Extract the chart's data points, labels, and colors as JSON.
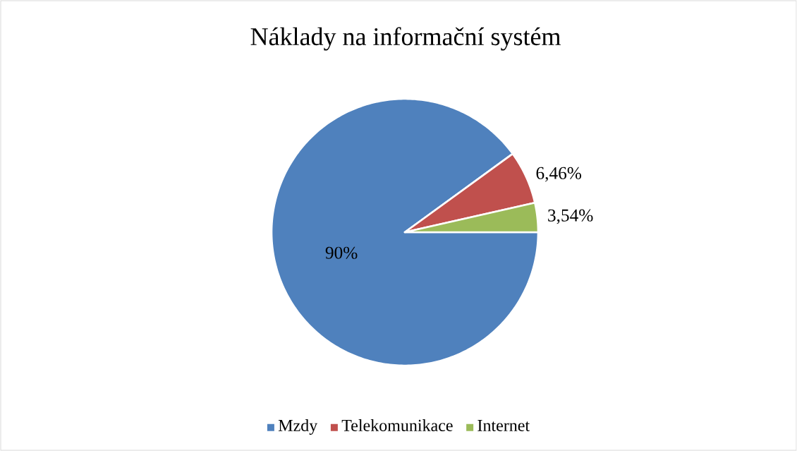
{
  "chart_data": {
    "type": "pie",
    "title": "Náklady na informační systém",
    "categories": [
      "Mzdy",
      "Telekomunikace",
      "Internet"
    ],
    "values": [
      90,
      6.46,
      3.54
    ],
    "colors": [
      "#4f81bd",
      "#c0504d",
      "#9bbb59"
    ],
    "value_labels": [
      "90%",
      "6,46%",
      "3,54%"
    ],
    "legend": "bottom"
  }
}
